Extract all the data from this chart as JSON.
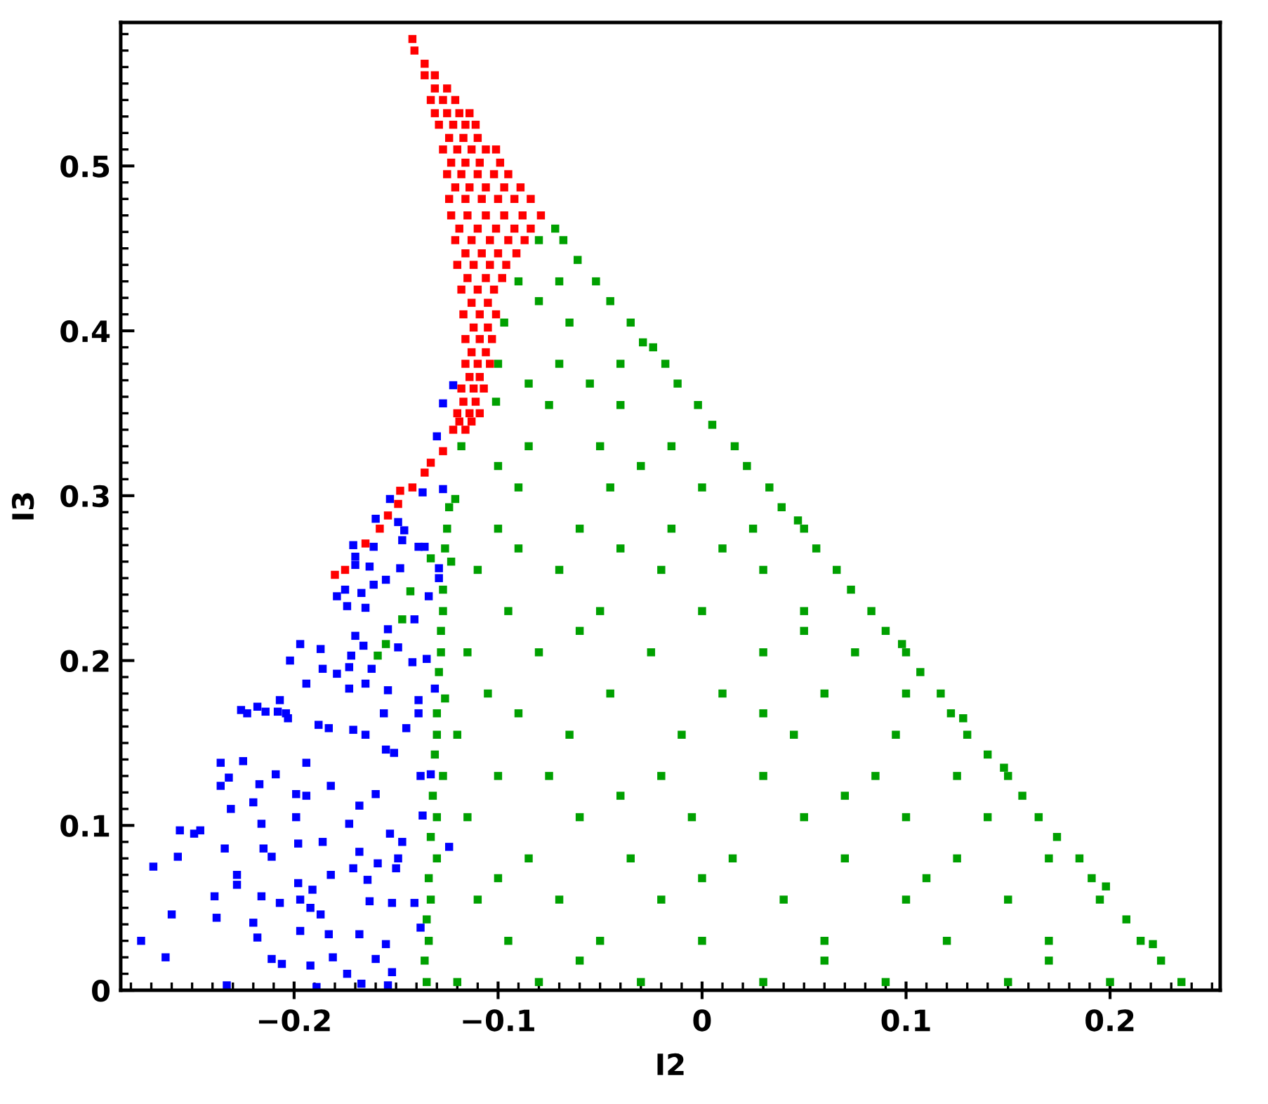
{
  "chart_data": {
    "type": "scatter",
    "xlabel": "I2",
    "ylabel": "I3",
    "marker": "square",
    "xlim": [
      -0.285,
      0.254
    ],
    "ylim": [
      0,
      0.587
    ],
    "xticks": [
      {
        "value": -0.2,
        "label": "−0.2"
      },
      {
        "value": -0.1,
        "label": "−0.1"
      },
      0,
      0.1,
      0.2
    ],
    "yticks": [
      0,
      0.1,
      0.2,
      0.3,
      0.4,
      0.5
    ],
    "series": [
      {
        "color": "#0000ff",
        "x": [
          -0.275,
          -0.269,
          -0.263,
          -0.26,
          -0.257,
          -0.256,
          -0.249,
          -0.246,
          -0.239,
          -0.238,
          -0.236,
          -0.236,
          -0.234,
          -0.233,
          -0.232,
          -0.231,
          -0.228,
          -0.228,
          -0.225,
          -0.226,
          -0.223,
          -0.22,
          -0.22,
          -0.218,
          -0.218,
          -0.217,
          -0.216,
          -0.216,
          -0.215,
          -0.214,
          -0.211,
          -0.211,
          -0.209,
          -0.208,
          -0.207,
          -0.207,
          -0.206,
          -0.204,
          -0.203,
          -0.202,
          -0.199,
          -0.199,
          -0.198,
          -0.198,
          -0.197,
          -0.197,
          -0.197,
          -0.194,
          -0.194,
          -0.194,
          -0.192,
          -0.192,
          -0.191,
          -0.189,
          -0.188,
          -0.187,
          -0.187,
          -0.186,
          -0.186,
          -0.183,
          -0.183,
          -0.182,
          -0.182,
          -0.181,
          -0.179,
          -0.179,
          -0.175,
          -0.174,
          -0.174,
          -0.173,
          -0.173,
          -0.173,
          -0.172,
          -0.171,
          -0.171,
          -0.17,
          -0.17,
          -0.168,
          -0.168,
          -0.168,
          -0.167,
          -0.167,
          -0.166,
          -0.165,
          -0.165,
          -0.165,
          -0.164,
          -0.163,
          -0.163,
          -0.162,
          -0.161,
          -0.16,
          -0.16,
          -0.159,
          -0.156,
          -0.155,
          -0.155,
          -0.155,
          -0.154,
          -0.154,
          -0.154,
          -0.153,
          -0.152,
          -0.152,
          -0.151,
          -0.15,
          -0.149,
          -0.149,
          -0.148,
          -0.147,
          -0.145,
          -0.142,
          -0.141,
          -0.141,
          -0.139,
          -0.139,
          -0.138,
          -0.138,
          -0.137,
          -0.136,
          -0.135,
          -0.134,
          -0.133,
          -0.131,
          -0.129,
          -0.129,
          -0.124,
          -0.171,
          -0.17,
          -0.161,
          -0.16,
          -0.153,
          -0.149,
          -0.147,
          -0.146,
          -0.139,
          -0.137,
          -0.127,
          -0.13,
          -0.127,
          -0.122
        ],
        "values": [
          0.03,
          0.075,
          0.02,
          0.046,
          0.081,
          0.097,
          0.095,
          0.097,
          0.057,
          0.044,
          0.138,
          0.124,
          0.086,
          0.003,
          0.129,
          0.11,
          0.07,
          0.064,
          0.139,
          0.17,
          0.168,
          0.114,
          0.041,
          0.172,
          0.032,
          0.125,
          0.101,
          0.057,
          0.086,
          0.169,
          0.019,
          0.081,
          0.131,
          0.169,
          0.176,
          0.053,
          0.016,
          0.168,
          0.165,
          0.2,
          0.119,
          0.105,
          0.089,
          0.065,
          0.036,
          0.21,
          0.055,
          0.186,
          0.118,
          0.138,
          0.015,
          0.05,
          0.061,
          0.002,
          0.161,
          0.207,
          0.046,
          0.195,
          0.09,
          0.034,
          0.159,
          0.124,
          0.07,
          0.02,
          0.192,
          0.239,
          0.243,
          0.233,
          0.01,
          0.196,
          0.183,
          0.101,
          0.203,
          0.074,
          0.158,
          0.215,
          0.258,
          0.112,
          0.084,
          0.034,
          0.004,
          0.241,
          0.209,
          0.186,
          0.232,
          0.155,
          0.067,
          0.054,
          0.257,
          0.195,
          0.246,
          0.119,
          0.019,
          0.077,
          0.168,
          0.249,
          0.146,
          0.028,
          0.003,
          0.219,
          0.182,
          0.095,
          0.011,
          0.053,
          0.144,
          0.074,
          0.208,
          0.08,
          0.256,
          0.09,
          0.159,
          0.199,
          0.225,
          0.053,
          0.168,
          0.176,
          0.13,
          0.038,
          0.106,
          0.269,
          0.201,
          0.239,
          0.131,
          0.183,
          0.25,
          0.256,
          0.087,
          0.27,
          0.263,
          0.269,
          0.286,
          0.298,
          0.284,
          0.273,
          0.279,
          0.269,
          0.302,
          0.304,
          0.336,
          0.356,
          0.367
        ]
      },
      {
        "color": "#00a000",
        "x": [
          -0.135,
          -0.12,
          -0.08,
          -0.03,
          0.03,
          0.09,
          0.15,
          0.2,
          0.235,
          -0.134,
          -0.095,
          -0.05,
          0.0,
          0.06,
          0.12,
          0.17,
          0.215,
          -0.133,
          -0.11,
          -0.07,
          -0.02,
          0.04,
          0.1,
          0.15,
          0.195,
          -0.13,
          -0.085,
          -0.035,
          0.015,
          0.07,
          0.125,
          0.17,
          0.185,
          -0.13,
          -0.115,
          -0.06,
          -0.005,
          0.05,
          0.1,
          0.14,
          0.165,
          -0.127,
          -0.1,
          -0.075,
          -0.02,
          0.03,
          0.085,
          0.125,
          0.15,
          -0.13,
          -0.12,
          -0.065,
          -0.01,
          0.045,
          0.095,
          0.13,
          -0.126,
          -0.105,
          -0.045,
          0.01,
          0.06,
          0.1,
          0.117,
          -0.128,
          -0.115,
          -0.08,
          -0.025,
          0.03,
          0.075,
          0.1,
          -0.127,
          -0.095,
          -0.05,
          0.0,
          0.05,
          0.083,
          -0.123,
          -0.11,
          -0.07,
          -0.02,
          0.03,
          0.066,
          -0.125,
          -0.1,
          -0.06,
          -0.015,
          0.025,
          0.05,
          -0.121,
          -0.09,
          -0.045,
          0.0,
          0.033,
          -0.118,
          -0.085,
          -0.05,
          -0.015,
          0.016,
          -0.101,
          -0.075,
          -0.04,
          -0.002,
          -0.1,
          -0.07,
          -0.04,
          -0.018,
          -0.097,
          -0.065,
          -0.035,
          -0.09,
          -0.07,
          -0.052,
          -0.08,
          -0.068,
          -0.072,
          0.098,
          0.148,
          0.198,
          0.047,
          -0.024,
          0.221,
          0.128,
          -0.147,
          -0.155,
          -0.159,
          -0.143,
          -0.133,
          0.225,
          0.208,
          0.191,
          0.174,
          0.157,
          0.14,
          0.122,
          0.107,
          0.09,
          0.073,
          0.056,
          0.039,
          0.022,
          0.005,
          -0.012,
          -0.029,
          -0.045,
          -0.061,
          -0.136,
          -0.135,
          -0.134,
          -0.133,
          -0.132,
          -0.131,
          -0.13,
          -0.129,
          -0.128,
          -0.127,
          -0.126,
          -0.124,
          -0.06,
          0.06,
          0.17,
          -0.1,
          0.0,
          0.11,
          -0.04,
          0.07,
          -0.09,
          0.03,
          -0.06,
          0.05,
          -0.09,
          -0.04,
          0.01,
          -0.1,
          -0.03,
          -0.085,
          -0.055,
          -0.08
        ],
        "values": [
          0.005,
          0.005,
          0.005,
          0.005,
          0.005,
          0.005,
          0.005,
          0.005,
          0.005,
          0.03,
          0.03,
          0.03,
          0.03,
          0.03,
          0.03,
          0.03,
          0.03,
          0.055,
          0.055,
          0.055,
          0.055,
          0.055,
          0.055,
          0.055,
          0.055,
          0.08,
          0.08,
          0.08,
          0.08,
          0.08,
          0.08,
          0.08,
          0.08,
          0.105,
          0.105,
          0.105,
          0.105,
          0.105,
          0.105,
          0.105,
          0.105,
          0.13,
          0.13,
          0.13,
          0.13,
          0.13,
          0.13,
          0.13,
          0.13,
          0.155,
          0.155,
          0.155,
          0.155,
          0.155,
          0.155,
          0.155,
          0.177,
          0.18,
          0.18,
          0.18,
          0.18,
          0.18,
          0.18,
          0.205,
          0.205,
          0.205,
          0.205,
          0.205,
          0.205,
          0.205,
          0.23,
          0.23,
          0.23,
          0.23,
          0.23,
          0.23,
          0.26,
          0.255,
          0.255,
          0.255,
          0.255,
          0.255,
          0.28,
          0.28,
          0.28,
          0.28,
          0.28,
          0.28,
          0.298,
          0.305,
          0.305,
          0.305,
          0.305,
          0.33,
          0.33,
          0.33,
          0.33,
          0.33,
          0.357,
          0.355,
          0.355,
          0.355,
          0.38,
          0.38,
          0.38,
          0.38,
          0.405,
          0.405,
          0.405,
          0.43,
          0.43,
          0.43,
          0.455,
          0.455,
          0.462,
          0.21,
          0.135,
          0.063,
          0.285,
          0.39,
          0.028,
          0.165,
          0.225,
          0.21,
          0.203,
          0.242,
          0.262,
          0.018,
          0.043,
          0.068,
          0.093,
          0.118,
          0.143,
          0.168,
          0.193,
          0.218,
          0.243,
          0.268,
          0.293,
          0.318,
          0.343,
          0.368,
          0.393,
          0.418,
          0.443,
          0.018,
          0.043,
          0.068,
          0.093,
          0.118,
          0.143,
          0.168,
          0.193,
          0.218,
          0.243,
          0.268,
          0.293,
          0.018,
          0.018,
          0.018,
          0.068,
          0.068,
          0.068,
          0.118,
          0.118,
          0.168,
          0.168,
          0.218,
          0.218,
          0.268,
          0.268,
          0.268,
          0.318,
          0.318,
          0.368,
          0.368,
          0.418
        ]
      },
      {
        "color": "#ff0000",
        "x": [
          -0.18,
          -0.175,
          -0.165,
          -0.158,
          -0.154,
          -0.149,
          -0.148,
          -0.142,
          -0.136,
          -0.133,
          -0.127,
          -0.142,
          -0.141,
          -0.136,
          -0.131,
          -0.133,
          -0.127,
          -0.121,
          -0.129,
          -0.122,
          -0.116,
          -0.111,
          -0.127,
          -0.12,
          -0.113,
          -0.106,
          -0.101,
          -0.125,
          -0.118,
          -0.11,
          -0.102,
          -0.095,
          -0.124,
          -0.116,
          -0.108,
          -0.1,
          -0.092,
          -0.084,
          -0.123,
          -0.115,
          -0.106,
          -0.097,
          -0.088,
          -0.079,
          -0.121,
          -0.113,
          -0.104,
          -0.095,
          -0.087,
          -0.12,
          -0.112,
          -0.104,
          -0.096,
          -0.118,
          -0.11,
          -0.102,
          -0.117,
          -0.109,
          -0.101,
          -0.116,
          -0.109,
          -0.103,
          -0.116,
          -0.11,
          -0.104,
          -0.118,
          -0.112,
          -0.107,
          -0.12,
          -0.114,
          -0.109,
          -0.122,
          -0.116,
          -0.136,
          -0.131,
          -0.125,
          -0.131,
          -0.125,
          -0.119,
          -0.114,
          -0.124,
          -0.117,
          -0.11,
          -0.123,
          -0.116,
          -0.109,
          -0.099,
          -0.121,
          -0.114,
          -0.106,
          -0.097,
          -0.089,
          -0.119,
          -0.11,
          -0.101,
          -0.092,
          -0.084,
          -0.116,
          -0.108,
          -0.1,
          -0.091,
          -0.115,
          -0.106,
          -0.098,
          -0.113,
          -0.105,
          -0.112,
          -0.105,
          -0.113,
          -0.106,
          -0.114,
          -0.109,
          -0.117,
          -0.111,
          -0.119,
          -0.113
        ],
        "values": [
          0.252,
          0.255,
          0.271,
          0.28,
          0.288,
          0.295,
          0.303,
          0.305,
          0.314,
          0.32,
          0.327,
          0.577,
          0.57,
          0.555,
          0.555,
          0.54,
          0.54,
          0.54,
          0.525,
          0.525,
          0.525,
          0.525,
          0.51,
          0.51,
          0.51,
          0.51,
          0.51,
          0.495,
          0.495,
          0.495,
          0.495,
          0.495,
          0.48,
          0.48,
          0.48,
          0.48,
          0.48,
          0.48,
          0.47,
          0.47,
          0.47,
          0.47,
          0.47,
          0.47,
          0.455,
          0.455,
          0.455,
          0.455,
          0.455,
          0.44,
          0.44,
          0.44,
          0.44,
          0.425,
          0.425,
          0.425,
          0.41,
          0.41,
          0.41,
          0.395,
          0.395,
          0.395,
          0.38,
          0.38,
          0.38,
          0.365,
          0.365,
          0.365,
          0.35,
          0.35,
          0.35,
          0.34,
          0.34,
          0.562,
          0.547,
          0.547,
          0.532,
          0.532,
          0.532,
          0.532,
          0.517,
          0.517,
          0.517,
          0.502,
          0.502,
          0.502,
          0.502,
          0.487,
          0.487,
          0.487,
          0.487,
          0.487,
          0.462,
          0.462,
          0.462,
          0.462,
          0.462,
          0.447,
          0.447,
          0.447,
          0.447,
          0.432,
          0.432,
          0.432,
          0.417,
          0.417,
          0.402,
          0.402,
          0.387,
          0.387,
          0.372,
          0.372,
          0.357,
          0.357,
          0.345,
          0.345
        ]
      }
    ]
  }
}
